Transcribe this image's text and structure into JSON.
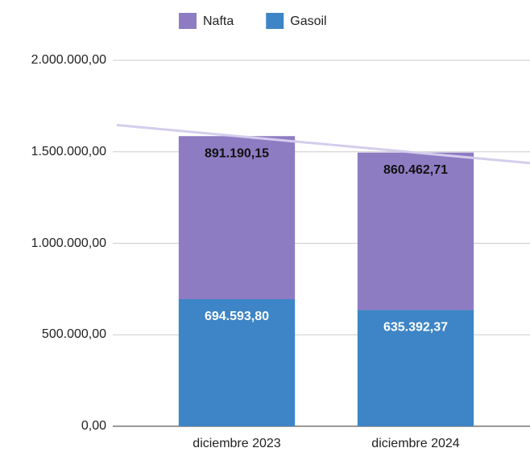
{
  "chart_data": {
    "type": "stacked_bar",
    "categories": [
      "diciembre 2023",
      "diciembre 2024"
    ],
    "series": [
      {
        "name": "Nafta",
        "color": "#8e7cc3",
        "label_color": "#111111",
        "values": [
          891190.15,
          860462.71
        ],
        "value_labels": [
          "891.190,15",
          "860.462,71"
        ]
      },
      {
        "name": "Gasoil",
        "color": "#3d85c6",
        "label_color": "#ffffff",
        "values": [
          694593.8,
          635392.37
        ],
        "value_labels": [
          "694.593,80",
          "635.392,37"
        ]
      }
    ],
    "ylim": [
      0,
      2000000
    ],
    "yticks": [
      {
        "value": 0,
        "label": "0,00"
      },
      {
        "value": 500000,
        "label": "500.000,00"
      },
      {
        "value": 1000000,
        "label": "1.000.000,00"
      },
      {
        "value": 1500000,
        "label": "1.500.000,00"
      },
      {
        "value": 2000000,
        "label": "2.000.000,00"
      }
    ],
    "grid": true,
    "legend": "top",
    "trendline": true,
    "trendline_color": "#d5cdec"
  }
}
